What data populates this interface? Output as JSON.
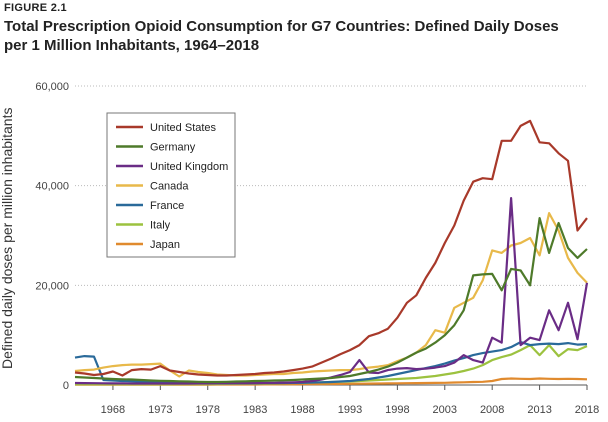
{
  "figure_label": "FIGURE 2.1",
  "chart_data": {
    "type": "line",
    "title": "Total Prescription Opioid Consumption for G7 Countries: Defined Daily Doses per 1 Million Inhabitants, 1964–2018",
    "xlabel": "",
    "ylabel": "Defined daily doses per million inhabitants",
    "xlim": [
      1964,
      2018
    ],
    "ylim": [
      0,
      60000
    ],
    "x_ticks": [
      1968,
      1973,
      1978,
      1983,
      1988,
      1993,
      1998,
      2003,
      2008,
      2013,
      2018
    ],
    "y_ticks": [
      0,
      20000,
      40000,
      60000
    ],
    "y_tick_labels": [
      "0",
      "20,000",
      "40,000",
      "60,000"
    ],
    "grid": "horizontal",
    "legend_position": "top-left",
    "x": [
      1964,
      1965,
      1966,
      1967,
      1968,
      1969,
      1970,
      1971,
      1972,
      1973,
      1974,
      1975,
      1976,
      1977,
      1978,
      1979,
      1980,
      1981,
      1982,
      1983,
      1984,
      1985,
      1986,
      1987,
      1988,
      1989,
      1990,
      1991,
      1992,
      1993,
      1994,
      1995,
      1996,
      1997,
      1998,
      1999,
      2000,
      2001,
      2002,
      2003,
      2004,
      2005,
      2006,
      2007,
      2008,
      2009,
      2010,
      2011,
      2012,
      2013,
      2014,
      2015,
      2016,
      2017,
      2018
    ],
    "series": [
      {
        "name": "United States",
        "color": "#a8392a",
        "values": [
          2500,
          2300,
          2000,
          2200,
          2700,
          1900,
          3000,
          3200,
          3100,
          3800,
          2900,
          2600,
          2300,
          2100,
          2000,
          1900,
          1900,
          2000,
          2100,
          2200,
          2400,
          2500,
          2700,
          3000,
          3300,
          3700,
          4500,
          5300,
          6200,
          7000,
          8000,
          9800,
          10400,
          11300,
          13500,
          16500,
          18000,
          21500,
          24500,
          28500,
          32000,
          37000,
          40800,
          41500,
          41300,
          49000,
          49000,
          52000,
          53000,
          48700,
          48500,
          46500,
          45000,
          31000,
          33500
        ]
      },
      {
        "name": "Germany",
        "color": "#4e7a2a",
        "values": [
          1600,
          1500,
          1400,
          1300,
          1200,
          1150,
          1100,
          1000,
          900,
          850,
          800,
          750,
          700,
          650,
          600,
          600,
          650,
          700,
          750,
          800,
          850,
          900,
          950,
          1000,
          1100,
          1200,
          1300,
          1400,
          1600,
          1800,
          2200,
          2600,
          3100,
          3700,
          4500,
          5500,
          6500,
          7300,
          8500,
          10000,
          12000,
          15000,
          22000,
          22200,
          22300,
          19000,
          23300,
          23000,
          20000,
          33500,
          26500,
          32500,
          27500,
          25500,
          27300
        ]
      },
      {
        "name": "United Kingdom",
        "color": "#6a2c86",
        "values": [
          400,
          380,
          360,
          340,
          330,
          320,
          310,
          300,
          300,
          300,
          300,
          300,
          310,
          320,
          330,
          340,
          350,
          360,
          380,
          400,
          420,
          450,
          480,
          520,
          600,
          800,
          1100,
          1500,
          2000,
          2600,
          5000,
          2500,
          2400,
          3000,
          3300,
          3400,
          3200,
          3300,
          3500,
          3800,
          4500,
          6000,
          5000,
          4500,
          9500,
          8500,
          37500,
          8000,
          9500,
          9000,
          15000,
          11000,
          16500,
          9200,
          20500
        ]
      },
      {
        "name": "Canada",
        "color": "#e8b94a",
        "values": [
          2800,
          3000,
          3100,
          3500,
          3800,
          4000,
          4100,
          4100,
          4200,
          4300,
          2900,
          1700,
          2900,
          2600,
          2400,
          2100,
          2000,
          1900,
          1900,
          2000,
          2100,
          2200,
          2200,
          2400,
          2500,
          2700,
          2800,
          2900,
          3000,
          3000,
          3200,
          3500,
          3700,
          4000,
          4800,
          5500,
          6500,
          8000,
          11000,
          10500,
          15500,
          16500,
          17500,
          21000,
          27000,
          26500,
          28000,
          28500,
          29500,
          26000,
          34500,
          31000,
          25500,
          22500,
          20500
        ]
      },
      {
        "name": "France",
        "color": "#2a6a9a",
        "values": [
          5500,
          5800,
          5700,
          1000,
          900,
          800,
          750,
          700,
          650,
          600,
          550,
          500,
          450,
          400,
          380,
          360,
          350,
          340,
          340,
          350,
          360,
          380,
          400,
          420,
          450,
          500,
          550,
          600,
          700,
          800,
          1000,
          1200,
          1500,
          1800,
          2200,
          2600,
          3000,
          3400,
          3800,
          4300,
          4900,
          5400,
          6000,
          6400,
          6700,
          7000,
          7600,
          8600,
          8000,
          8200,
          8300,
          8200,
          8400,
          8100,
          8200
        ]
      },
      {
        "name": "Italy",
        "color": "#9cc23f",
        "values": [
          150,
          150,
          150,
          150,
          150,
          150,
          150,
          150,
          150,
          150,
          150,
          160,
          170,
          180,
          190,
          200,
          220,
          240,
          260,
          280,
          300,
          330,
          360,
          400,
          450,
          500,
          550,
          600,
          650,
          700,
          800,
          900,
          1000,
          1100,
          1200,
          1300,
          1400,
          1600,
          1800,
          2100,
          2400,
          2800,
          3300,
          4000,
          5000,
          5600,
          6100,
          7000,
          8000,
          6000,
          8000,
          5800,
          7200,
          7000,
          7800
        ]
      },
      {
        "name": "Japan",
        "color": "#e08a2e",
        "values": [
          80,
          80,
          80,
          80,
          80,
          80,
          80,
          80,
          80,
          80,
          80,
          80,
          90,
          90,
          90,
          100,
          100,
          100,
          110,
          110,
          120,
          130,
          140,
          150,
          160,
          170,
          180,
          200,
          220,
          240,
          260,
          280,
          300,
          320,
          340,
          360,
          380,
          400,
          420,
          450,
          500,
          550,
          600,
          650,
          800,
          1200,
          1300,
          1250,
          1200,
          1300,
          1250,
          1200,
          1250,
          1200,
          1150
        ]
      }
    ]
  }
}
